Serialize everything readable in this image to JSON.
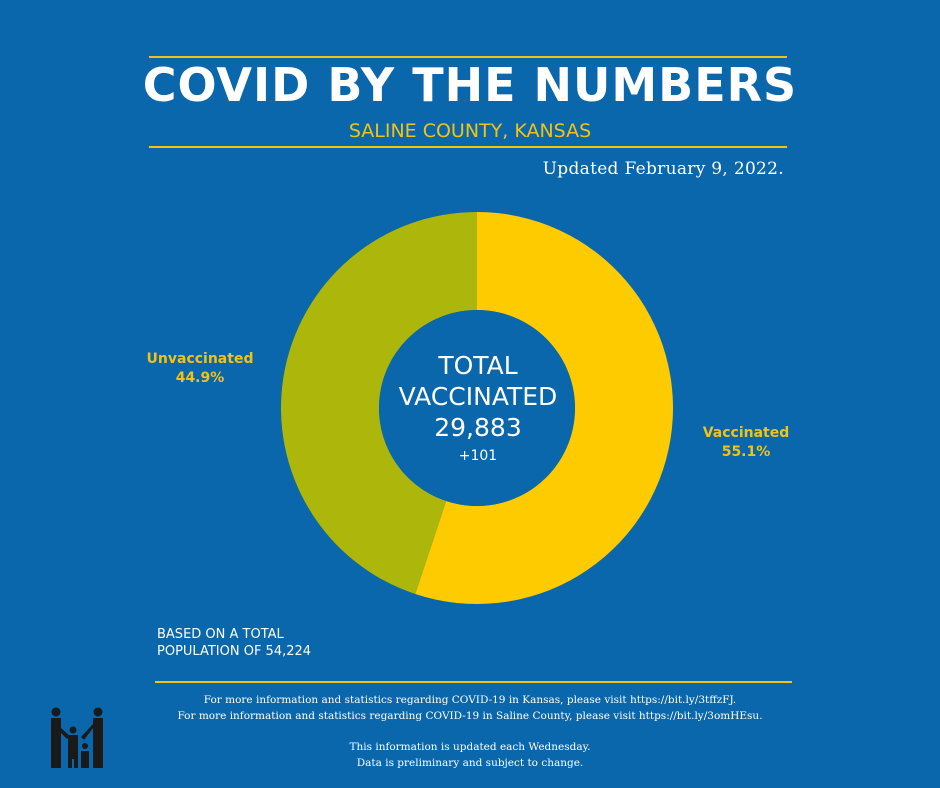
{
  "header": {
    "title": "COVID BY THE NUMBERS",
    "subtitle": "SALINE COUNTY, KANSAS",
    "updated": "Updated February 9, 2022."
  },
  "colors": {
    "background": "#0a67ab",
    "accent": "#f2c314",
    "vaccinated": "#fdcb00",
    "unvaccinated": "#adb60a"
  },
  "chart_data": {
    "type": "pie",
    "donut": true,
    "slices": [
      {
        "label": "Vaccinated",
        "value": 55.1,
        "display": "55.1%",
        "color": "#fdcb00"
      },
      {
        "label": "Unvaccinated",
        "value": 44.9,
        "display": "44.9%",
        "color": "#adb60a"
      }
    ],
    "center": {
      "line1": "TOTAL",
      "line2": "VACCINATED",
      "total": "29,883",
      "change": "+101"
    }
  },
  "footer": {
    "basis_line1": "BASED ON A TOTAL",
    "basis_line2": "POPULATION OF 54,224",
    "info_kansas": "For more information and statistics regarding COVID-19 in Kansas, please visit https://bit.ly/3tffzFJ.",
    "info_saline": "For more information and statistics regarding COVID-19 in Saline County, please visit  https://bit.ly/3omHEsu.",
    "note_line1": "This information is updated each Wednesday.",
    "note_line2": "Data is preliminary and subject to change."
  },
  "logo": {
    "icon": "family-logo-icon"
  }
}
